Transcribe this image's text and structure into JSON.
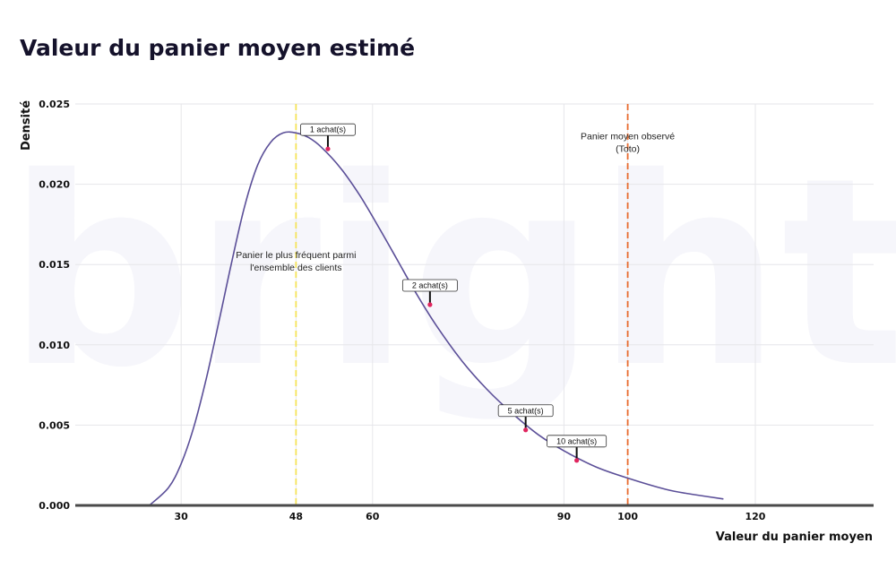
{
  "chart_data": {
    "type": "line",
    "title": "Valeur du panier moyen estimé",
    "xlabel": "Valeur du panier moyen",
    "ylabel": "Densité",
    "xlim": [
      10,
      120
    ],
    "ylim": [
      0,
      0.025
    ],
    "x_ticks": [
      30,
      48,
      60,
      90,
      100,
      120
    ],
    "y_ticks": [
      "0.000",
      "0.005",
      "0.010",
      "0.015",
      "0.020",
      "0.025"
    ],
    "grid": true,
    "watermark": "bright.",
    "series": [
      {
        "x": [
          25,
          28,
          30,
          32,
          34,
          36,
          38,
          40,
          42,
          44,
          46,
          48,
          50,
          52,
          55,
          58,
          61,
          64,
          67,
          70,
          74,
          78,
          82,
          86,
          90,
          95,
          100,
          106,
          110,
          115
        ],
        "values": [
          0,
          0.0011,
          0.0026,
          0.0049,
          0.008,
          0.0116,
          0.0153,
          0.0187,
          0.0212,
          0.0226,
          0.0232,
          0.0232,
          0.0229,
          0.0223,
          0.021,
          0.0193,
          0.0173,
          0.0152,
          0.0131,
          0.0112,
          0.009,
          0.0072,
          0.0057,
          0.0044,
          0.0034,
          0.0024,
          0.0017,
          0.001,
          0.0007,
          0.0004
        ],
        "color": "#5b4f98"
      }
    ],
    "vlines": [
      {
        "x": 48,
        "color": "#f5e35a",
        "label_lines": [
          "Panier le plus fréquent parmi",
          "l'ensemble des clients"
        ],
        "label_y": 0.0154
      },
      {
        "x": 100,
        "color": "#e86b2e",
        "label_lines": [
          "Panier moyen observé",
          "(Toto)"
        ],
        "label_y": 0.0228
      }
    ],
    "points": [
      {
        "x": 53,
        "y": 0.0222,
        "label": "1 achat(s)"
      },
      {
        "x": 69,
        "y": 0.0125,
        "label": "2 achat(s)"
      },
      {
        "x": 84,
        "y": 0.0047,
        "label": "5 achat(s)"
      },
      {
        "x": 92,
        "y": 0.0028,
        "label": "10 achat(s)"
      }
    ],
    "point_color": "#e0245e"
  }
}
